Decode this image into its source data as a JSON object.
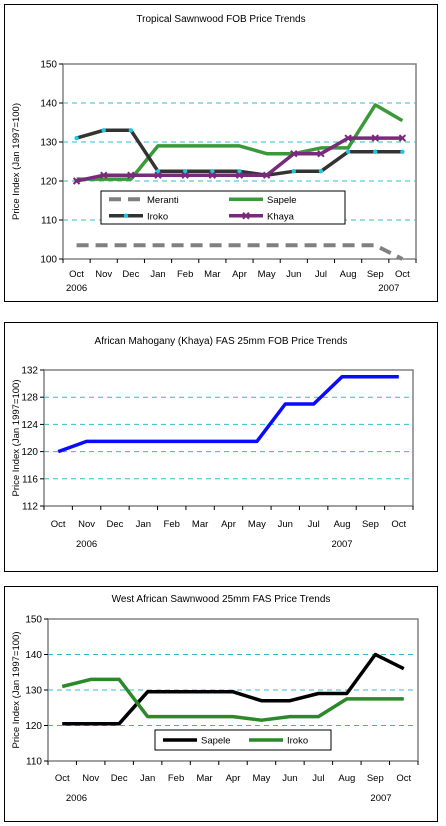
{
  "chart_data": [
    {
      "type": "line",
      "title": "Tropical Sawnwood FOB Price Trends",
      "ylabel": "Price Index (Jan 1997=100)",
      "xlabel": "",
      "categories": [
        "Oct",
        "Nov",
        "Dec",
        "Jan",
        "Feb",
        "Mar",
        "Apr",
        "May",
        "Jun",
        "Jul",
        "Aug",
        "Sep",
        "Oct"
      ],
      "year_labels": [
        {
          "text": "2006",
          "index": 0
        },
        {
          "text": "2007",
          "index": 11.5
        }
      ],
      "ylim": [
        100,
        150
      ],
      "yticks": [
        100,
        110,
        120,
        130,
        140,
        150
      ],
      "grid": true,
      "legend": "inside-lower-center",
      "series": [
        {
          "name": "Meranti",
          "color": "#808080",
          "dash": true,
          "marker": "none",
          "values": [
            103.5,
            103.5,
            103.5,
            103.5,
            103.5,
            103.5,
            103.5,
            103.5,
            103.5,
            103.5,
            103.5,
            103.5,
            100
          ]
        },
        {
          "name": "Sapele",
          "color": "#3a9a3a",
          "dash": false,
          "marker": "none",
          "values": [
            120.5,
            120.5,
            120.5,
            129,
            129,
            129,
            129,
            127,
            127,
            128.5,
            128.5,
            139.5,
            135.5
          ]
        },
        {
          "name": "Iroko",
          "color": "#333333",
          "dash": false,
          "marker": "dot",
          "values": [
            131,
            133,
            133,
            122.5,
            122.5,
            122.5,
            122.5,
            121.5,
            122.5,
            122.5,
            127.5,
            127.5,
            127.5
          ]
        },
        {
          "name": "Khaya",
          "color": "#7a2a7a",
          "dash": false,
          "marker": "x",
          "values": [
            120,
            121.5,
            121.5,
            121.5,
            121.5,
            121.5,
            121.5,
            121.5,
            127,
            127,
            131,
            131,
            131
          ]
        }
      ]
    },
    {
      "type": "line",
      "title": "African Mahogany (Khaya) FAS 25mm FOB Price Trends",
      "ylabel": "Price Index (Jan 1997=100)",
      "xlabel": "",
      "categories": [
        "Oct",
        "Nov",
        "Dec",
        "Jan",
        "Feb",
        "Mar",
        "Apr",
        "May",
        "Jun",
        "Jul",
        "Aug",
        "Sep",
        "Oct"
      ],
      "year_labels": [
        {
          "text": "2006",
          "index": 1
        },
        {
          "text": "2007",
          "index": 10
        }
      ],
      "ylim": [
        112,
        132
      ],
      "yticks": [
        112,
        116,
        120,
        124,
        128,
        132
      ],
      "grid": true,
      "legend": "none",
      "series": [
        {
          "name": "",
          "color": "#0a0aff",
          "dash": false,
          "marker": "none",
          "values": [
            120,
            121.5,
            121.5,
            121.5,
            121.5,
            121.5,
            121.5,
            121.5,
            127,
            127,
            131,
            131,
            131
          ]
        }
      ]
    },
    {
      "type": "line",
      "title": "West African Sawnwood 25mm FAS Price Trends",
      "ylabel": "Price Index (Jan 1997=100)",
      "xlabel": "",
      "categories": [
        "Oct",
        "Nov",
        "Dec",
        "Jan",
        "Feb",
        "Mar",
        "Apr",
        "May",
        "Jun",
        "Jul",
        "Aug",
        "Sep",
        "Oct"
      ],
      "year_labels": [
        {
          "text": "2006",
          "index": 0.5
        },
        {
          "text": "2007",
          "index": 11.2
        }
      ],
      "ylim": [
        110,
        150
      ],
      "yticks": [
        110,
        120,
        130,
        140,
        150
      ],
      "grid": true,
      "legend": "inside-lower-center",
      "series": [
        {
          "name": "Sapele",
          "color": "#000000",
          "dash": false,
          "marker": "none",
          "values": [
            120.5,
            120.5,
            120.5,
            129.5,
            129.5,
            129.5,
            129.5,
            127,
            127,
            129,
            129,
            140,
            136
          ]
        },
        {
          "name": "Iroko",
          "color": "#2a8a2a",
          "dash": false,
          "marker": "none",
          "values": [
            131,
            133,
            133,
            122.5,
            122.5,
            122.5,
            122.5,
            121.5,
            122.5,
            122.5,
            127.5,
            127.5,
            127.5
          ]
        }
      ]
    }
  ]
}
